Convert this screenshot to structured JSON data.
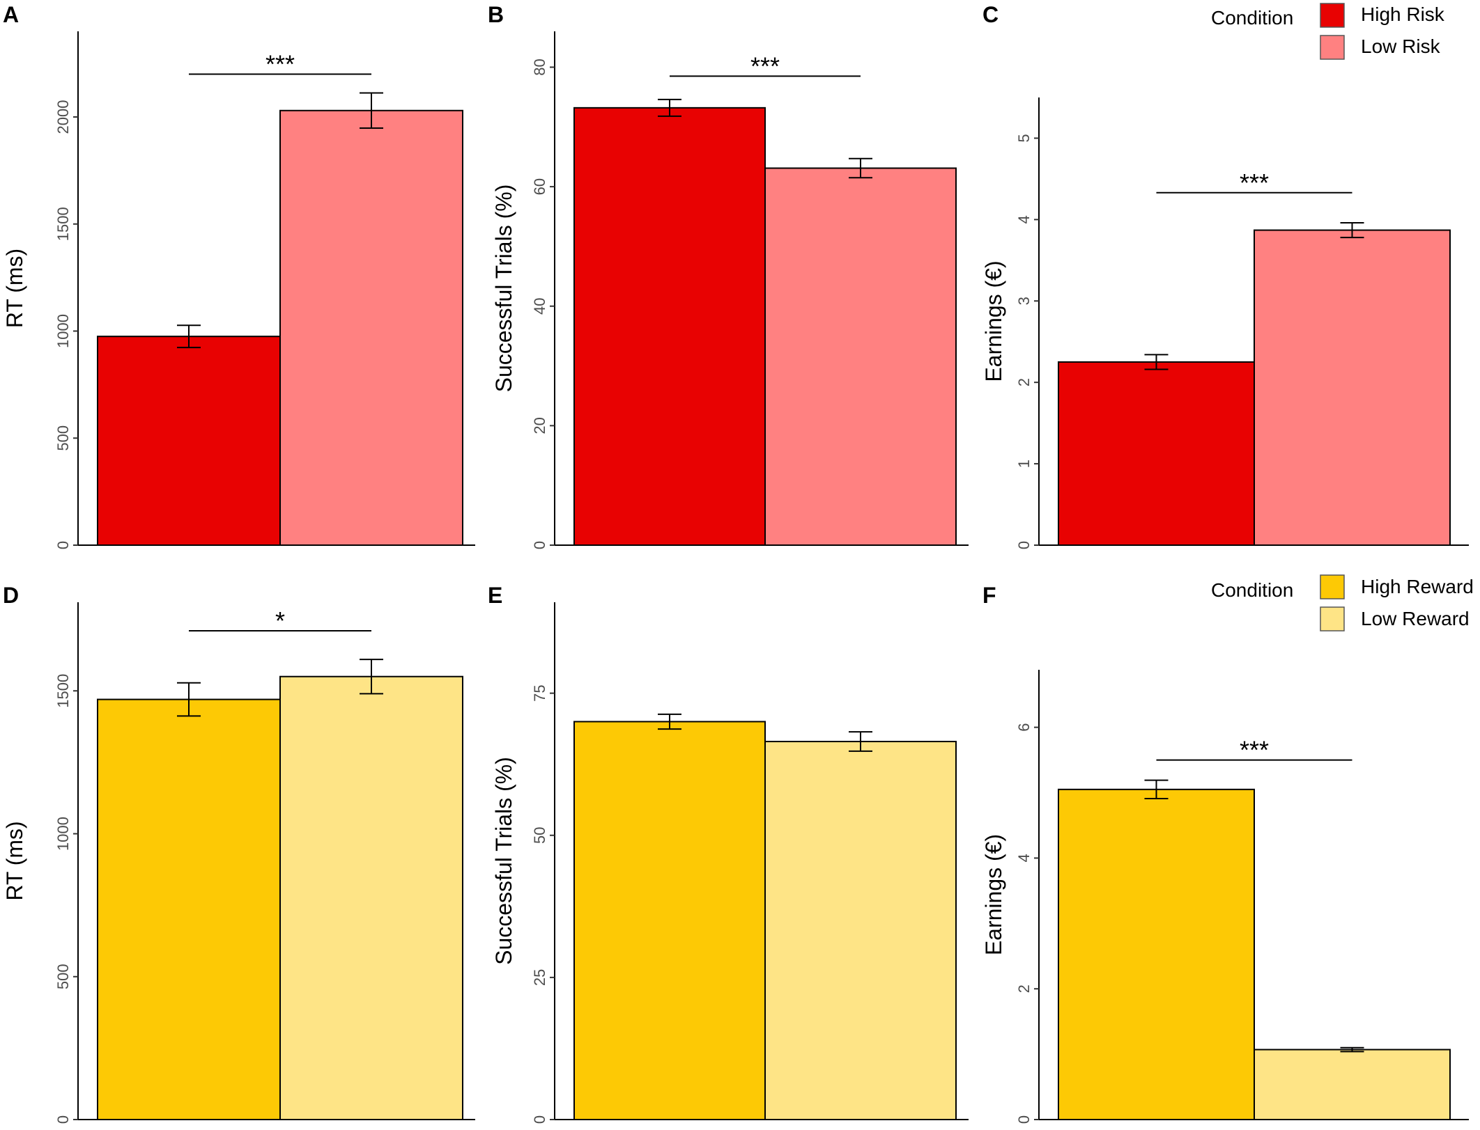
{
  "legends": [
    {
      "title": "Condition",
      "entries": [
        {
          "label": "High Risk",
          "color": "#e80202"
        },
        {
          "label": "Low Risk",
          "color": "#ff8181"
        }
      ]
    },
    {
      "title": "Condition",
      "entries": [
        {
          "label": "High Reward",
          "color": "#fdc905"
        },
        {
          "label": "Low Reward",
          "color": "#fee486"
        }
      ]
    }
  ],
  "chart_data": [
    {
      "panel": "A",
      "type": "bar",
      "ylabel": "RT (ms)",
      "categories": [
        "High Risk",
        "Low Risk"
      ],
      "values": [
        975,
        2030
      ],
      "errors": [
        52,
        82
      ],
      "colors": [
        "#e80202",
        "#ff8181"
      ],
      "ylim": [
        0,
        2400
      ],
      "yticks": [
        0,
        500,
        1000,
        1500,
        2000
      ],
      "significance": {
        "label": "***",
        "y": 2200
      }
    },
    {
      "panel": "B",
      "type": "bar",
      "ylabel": "Successful Trials (%)",
      "categories": [
        "High Risk",
        "Low Risk"
      ],
      "values": [
        73.2,
        63.1
      ],
      "errors": [
        1.4,
        1.6
      ],
      "colors": [
        "#e80202",
        "#ff8181"
      ],
      "ylim": [
        0,
        86
      ],
      "yticks": [
        0,
        20,
        40,
        60,
        80
      ],
      "significance": {
        "label": "***",
        "y": 78.5
      }
    },
    {
      "panel": "C",
      "type": "bar",
      "ylabel": "Earnings (€)",
      "categories": [
        "High Risk",
        "Low Risk"
      ],
      "values": [
        2.25,
        3.87
      ],
      "errors": [
        0.09,
        0.09
      ],
      "colors": [
        "#e80202",
        "#ff8181"
      ],
      "ylim": [
        0,
        5.5
      ],
      "yticks": [
        0,
        1,
        2,
        3,
        4,
        5
      ],
      "significance": {
        "label": "***",
        "y": 4.33
      }
    },
    {
      "panel": "D",
      "type": "bar",
      "ylabel": "RT (ms)",
      "categories": [
        "High Reward",
        "Low Reward"
      ],
      "values": [
        1470,
        1550
      ],
      "errors": [
        58,
        60
      ],
      "colors": [
        "#fdc905",
        "#fee486"
      ],
      "ylim": [
        0,
        1810
      ],
      "yticks": [
        0,
        500,
        1000,
        1500
      ],
      "significance": {
        "label": "*",
        "y": 1710
      }
    },
    {
      "panel": "E",
      "type": "bar",
      "ylabel": "Successful Trials (%)",
      "categories": [
        "High Reward",
        "Low Reward"
      ],
      "values": [
        70.0,
        66.5
      ],
      "errors": [
        1.3,
        1.7
      ],
      "colors": [
        "#fdc905",
        "#fee486"
      ],
      "ylim": [
        0,
        91
      ],
      "yticks": [
        0,
        25,
        50,
        75
      ]
    },
    {
      "panel": "F",
      "type": "bar",
      "ylabel": "Earnings (€)",
      "categories": [
        "High Reward",
        "Low Reward"
      ],
      "values": [
        5.05,
        1.07
      ],
      "errors": [
        0.14,
        0.03
      ],
      "colors": [
        "#fdc905",
        "#fee486"
      ],
      "ylim": [
        0,
        6.88
      ],
      "yticks": [
        0,
        2,
        4,
        6
      ],
      "significance": {
        "label": "***",
        "y": 5.5
      }
    }
  ]
}
